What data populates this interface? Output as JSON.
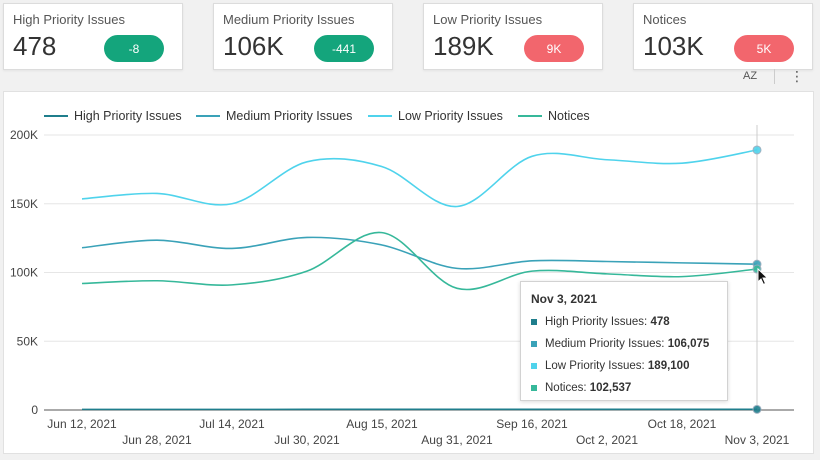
{
  "cards": [
    {
      "label": "High Priority Issues",
      "value": "478",
      "delta": "-8",
      "trend": "down"
    },
    {
      "label": "Medium Priority Issues",
      "value": "106K",
      "delta": "-441",
      "trend": "down"
    },
    {
      "label": "Low Priority Issues",
      "value": "189K",
      "delta": "9K",
      "trend": "up"
    },
    {
      "label": "Notices",
      "value": "103K",
      "delta": "5K",
      "trend": "up"
    }
  ],
  "toolbar": {
    "sort_label": "AZ",
    "more_label": "⋮"
  },
  "colors": {
    "high": "#1f7e8c",
    "medium": "#3aa2b8",
    "low": "#4fd3ec",
    "notices": "#36b89a",
    "badge_down": "#14a57c",
    "badge_up": "#f2666d"
  },
  "tooltip": {
    "title": "Nov 3, 2021",
    "rows": [
      {
        "label": "High Priority Issues: ",
        "value": "478",
        "color": "#1f7e8c"
      },
      {
        "label": "Medium Priority Issues: ",
        "value": "106,075",
        "color": "#3aa2b8"
      },
      {
        "label": "Low Priority Issues: ",
        "value": "189,100",
        "color": "#4fd3ec"
      },
      {
        "label": "Notices: ",
        "value": "102,537",
        "color": "#36b89a"
      }
    ]
  },
  "chart_data": {
    "type": "line",
    "x": [
      "Jun 12, 2021",
      "Jun 28, 2021",
      "Jul 14, 2021",
      "Jul 30, 2021",
      "Aug 15, 2021",
      "Aug 31, 2021",
      "Sep 16, 2021",
      "Oct 2, 2021",
      "Oct 18, 2021",
      "Nov 3, 2021"
    ],
    "series": [
      {
        "name": "High Priority Issues",
        "values": [
          450,
          460,
          455,
          470,
          465,
          480,
          475,
          470,
          480,
          478
        ]
      },
      {
        "name": "Medium Priority Issues",
        "values": [
          118000,
          123500,
          117500,
          125500,
          120000,
          103000,
          108500,
          108000,
          107000,
          106075
        ]
      },
      {
        "name": "Low Priority Issues",
        "values": [
          153500,
          157500,
          150000,
          180500,
          177000,
          148000,
          184500,
          182000,
          179500,
          189100
        ]
      },
      {
        "name": "Notices",
        "values": [
          92000,
          94000,
          91000,
          101000,
          129000,
          88500,
          101000,
          99000,
          97000,
          102537
        ]
      }
    ],
    "yticks": [
      "0",
      "50K",
      "100K",
      "150K",
      "200K"
    ],
    "ylim": [
      0,
      200000
    ],
    "grid": true,
    "legend": "top-left",
    "highlight_index": 9
  }
}
